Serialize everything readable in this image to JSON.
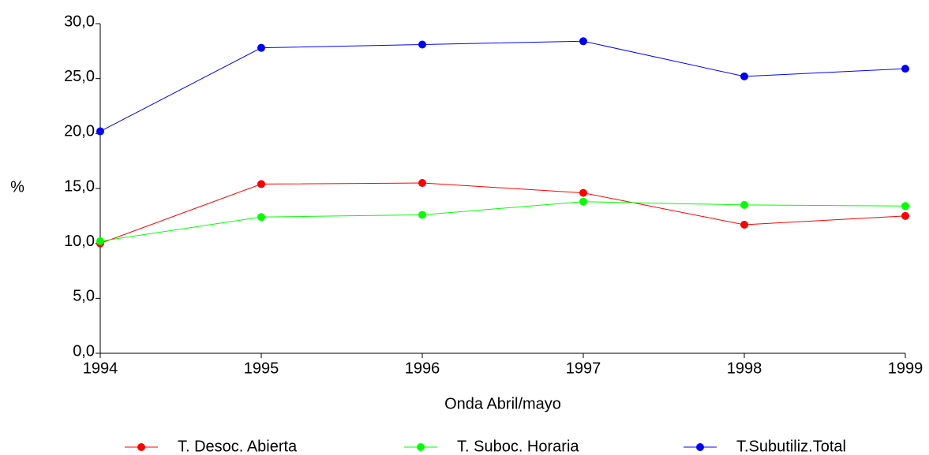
{
  "chart_data": {
    "type": "line",
    "x": [
      1994,
      1995,
      1996,
      1997,
      1998,
      1999
    ],
    "series": [
      {
        "name": "T. Desoc. Abierta",
        "color": "#ff0000",
        "values": [
          10.0,
          15.4,
          15.5,
          14.6,
          11.7,
          12.5
        ]
      },
      {
        "name": "T. Suboc. Horaria",
        "color": "#00ff00",
        "values": [
          10.2,
          12.4,
          12.6,
          13.8,
          13.5,
          13.4
        ]
      },
      {
        "name": "T.Subutiliz.Total",
        "color": "#0000ff",
        "values": [
          20.2,
          27.8,
          28.1,
          28.4,
          25.2,
          25.9
        ]
      }
    ],
    "xlabel": "Onda Abril/mayo",
    "ylabel": "%",
    "xlim": [
      1994,
      1999
    ],
    "xticks": [
      1994,
      1995,
      1996,
      1997,
      1998,
      1999
    ],
    "ylim": [
      0,
      30
    ],
    "yticks": [
      {
        "value": 0,
        "label": "0,0"
      },
      {
        "value": 5,
        "label": "5,0"
      },
      {
        "value": 10,
        "label": "10,0"
      },
      {
        "value": 15,
        "label": "15,0"
      },
      {
        "value": 20,
        "label": "20,0"
      },
      {
        "value": 25,
        "label": "25,0"
      },
      {
        "value": 30,
        "label": "30,0"
      }
    ],
    "legend": "bottom"
  }
}
